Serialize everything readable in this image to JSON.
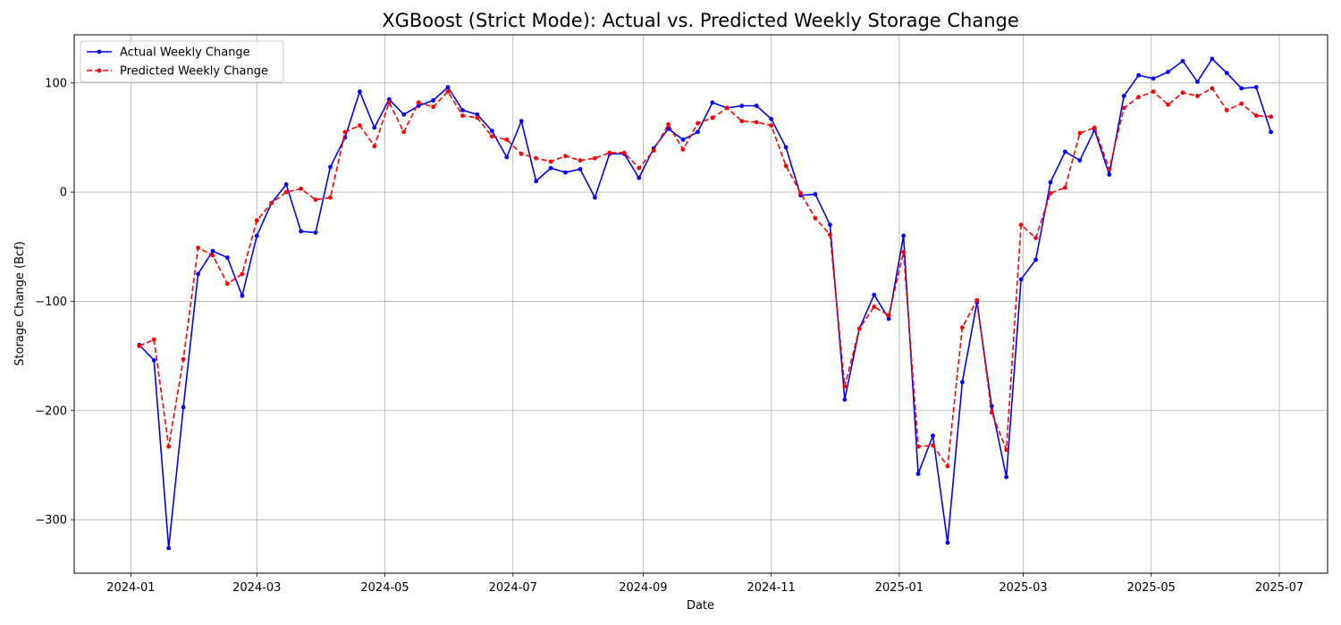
{
  "chart_data": {
    "type": "line",
    "title": "XGBoost (Strict Mode): Actual vs. Predicted Weekly Storage Change",
    "xlabel": "Date",
    "ylabel": "Storage Change (Bcf)",
    "xlim": [
      "2023-12-05",
      "2025-07-24"
    ],
    "ylim": [
      -349,
      144
    ],
    "grid": true,
    "legend_position": "top-left",
    "x_ticks": [
      "2024-01-01",
      "2024-03-01",
      "2024-05-01",
      "2024-07-01",
      "2024-09-01",
      "2024-11-01",
      "2025-01-01",
      "2025-03-01",
      "2025-05-01",
      "2025-07-01"
    ],
    "x_tick_labels": [
      "2024-01",
      "2024-03",
      "2024-05",
      "2024-07",
      "2024-09",
      "2024-11",
      "2025-01",
      "2025-03",
      "2025-05",
      "2025-07"
    ],
    "y_ticks": [
      -300,
      -200,
      -100,
      0,
      100
    ],
    "y_tick_labels": [
      "−300",
      "−200",
      "−100",
      "0",
      "100"
    ],
    "x": [
      "2024-01-05",
      "2024-01-12",
      "2024-01-19",
      "2024-01-26",
      "2024-02-02",
      "2024-02-09",
      "2024-02-16",
      "2024-02-23",
      "2024-03-01",
      "2024-03-08",
      "2024-03-15",
      "2024-03-22",
      "2024-03-29",
      "2024-04-05",
      "2024-04-12",
      "2024-04-19",
      "2024-04-26",
      "2024-05-03",
      "2024-05-10",
      "2024-05-17",
      "2024-05-24",
      "2024-05-31",
      "2024-06-07",
      "2024-06-14",
      "2024-06-21",
      "2024-06-28",
      "2024-07-05",
      "2024-07-12",
      "2024-07-19",
      "2024-07-26",
      "2024-08-02",
      "2024-08-09",
      "2024-08-16",
      "2024-08-23",
      "2024-08-30",
      "2024-09-06",
      "2024-09-13",
      "2024-09-20",
      "2024-09-27",
      "2024-10-04",
      "2024-10-11",
      "2024-10-18",
      "2024-10-25",
      "2024-11-01",
      "2024-11-08",
      "2024-11-15",
      "2024-11-22",
      "2024-11-29",
      "2024-12-06",
      "2024-12-13",
      "2024-12-20",
      "2024-12-27",
      "2025-01-03",
      "2025-01-10",
      "2025-01-17",
      "2025-01-24",
      "2025-01-31",
      "2025-02-07",
      "2025-02-14",
      "2025-02-21",
      "2025-02-28",
      "2025-03-07",
      "2025-03-14",
      "2025-03-21",
      "2025-03-28",
      "2025-04-04",
      "2025-04-11",
      "2025-04-18",
      "2025-04-25",
      "2025-05-02",
      "2025-05-09",
      "2025-05-16",
      "2025-05-23",
      "2025-05-30",
      "2025-06-06",
      "2025-06-13",
      "2025-06-20",
      "2025-06-27"
    ],
    "series": [
      {
        "name": "Actual Weekly Change",
        "color": "#0000ff",
        "style": "solid",
        "marker": "dot",
        "values": [
          -140,
          -154,
          -326,
          -197,
          -75,
          -54,
          -60,
          -95,
          -40,
          -10,
          7,
          -36,
          -37,
          23,
          50,
          92,
          59,
          85,
          71,
          79,
          84,
          96,
          75,
          71,
          56,
          32,
          65,
          10,
          22,
          18,
          21,
          -5,
          35,
          35,
          13,
          40,
          58,
          48,
          55,
          82,
          77,
          79,
          79,
          67,
          41,
          -3,
          -2,
          -30,
          -190,
          -125,
          -94,
          -116,
          -40,
          -258,
          -223,
          -321,
          -174,
          -101,
          -196,
          -261,
          -80,
          -62,
          9,
          37,
          29,
          57,
          16,
          88,
          107,
          104,
          110,
          120,
          101,
          122,
          109,
          95,
          96,
          55
        ]
      },
      {
        "name": "Predicted Weekly Change",
        "color": "#ff0000",
        "style": "dashed",
        "marker": "dot",
        "values": [
          -141,
          -135,
          -233,
          -153,
          -51,
          -58,
          -84,
          -75,
          -26,
          -10,
          0,
          3,
          -7,
          -5,
          55,
          61,
          42,
          82,
          55,
          82,
          78,
          92,
          70,
          68,
          51,
          48,
          35,
          31,
          28,
          33,
          29,
          31,
          36,
          36,
          22,
          38,
          62,
          39,
          63,
          68,
          77,
          65,
          64,
          61,
          24,
          -1,
          -24,
          -39,
          -178,
          -125,
          -105,
          -113,
          -55,
          -233,
          -232,
          -251,
          -124,
          -99,
          -202,
          -236,
          -30,
          -42,
          -1,
          4,
          54,
          59,
          21,
          77,
          87,
          92,
          80,
          91,
          88,
          95,
          75,
          81,
          70,
          69
        ]
      }
    ]
  }
}
